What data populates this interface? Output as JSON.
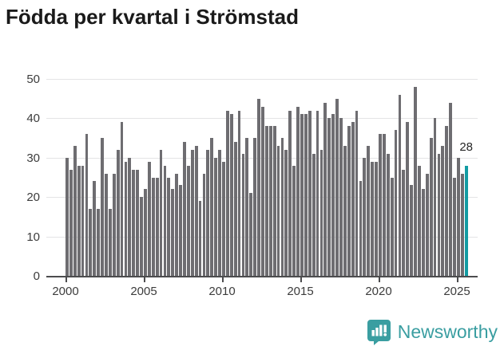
{
  "title": "Födda per kvartal i Strömstad",
  "chart_data": {
    "type": "bar",
    "title": "Födda per kvartal i Strömstad",
    "frequency": "quarterly",
    "start_period": "2000 Q1",
    "end_period": "2025 Q3",
    "series": [
      {
        "name": "Födda per kvartal",
        "values": [
          30,
          27,
          33,
          28,
          28,
          36,
          17,
          24,
          17,
          35,
          26,
          17,
          26,
          32,
          39,
          29,
          30,
          27,
          27,
          20,
          22,
          29,
          25,
          25,
          32,
          28,
          25,
          22,
          26,
          23,
          34,
          28,
          32,
          33,
          19,
          26,
          32,
          35,
          30,
          32,
          29,
          42,
          41,
          34,
          42,
          31,
          35,
          21,
          35,
          45,
          43,
          38,
          38,
          38,
          33,
          35,
          32,
          42,
          28,
          43,
          41,
          41,
          42,
          31,
          42,
          32,
          44,
          40,
          41,
          45,
          40,
          33,
          38,
          39,
          42,
          24,
          30,
          33,
          29,
          29,
          36,
          36,
          31,
          25,
          37,
          46,
          27,
          39,
          23,
          48,
          28,
          22,
          26,
          35,
          40,
          31,
          33,
          38,
          44,
          25,
          30,
          26,
          28
        ]
      }
    ],
    "xlabel": "",
    "ylabel": "",
    "ylim": [
      0,
      50
    ],
    "y_ticks": [
      0,
      10,
      20,
      30,
      40,
      50
    ],
    "x_tick_labels": [
      "2000",
      "2005",
      "2010",
      "2015",
      "2020",
      "2025"
    ],
    "grid": true,
    "legend": false,
    "bar_color": "#6e6d71",
    "highlight_last_bar": true,
    "highlight_color": "#129ca3",
    "last_value_label": "28"
  },
  "footer": {
    "brand": "Newsworthy",
    "brand_color": "#3a9ea1"
  }
}
